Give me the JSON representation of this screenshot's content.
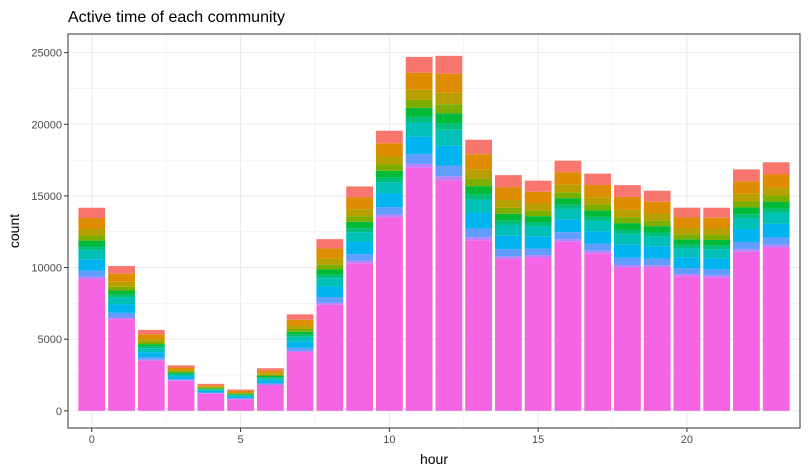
{
  "chart_data": {
    "type": "bar",
    "stacked": true,
    "title": "Active time of each community",
    "xlabel": "hour",
    "ylabel": "count",
    "x": [
      0,
      1,
      2,
      3,
      4,
      5,
      6,
      7,
      8,
      9,
      10,
      11,
      12,
      13,
      14,
      15,
      16,
      17,
      18,
      19,
      20,
      21,
      22,
      23
    ],
    "totals": [
      14300,
      10200,
      5700,
      3200,
      1900,
      1500,
      3000,
      6800,
      12100,
      15800,
      19700,
      24900,
      25000,
      19100,
      16600,
      16200,
      17600,
      16700,
      15900,
      15500,
      14300,
      14300,
      17000,
      17500
    ],
    "base_pink": [
      9200,
      6400,
      3500,
      2100,
      1200,
      800,
      1800,
      4100,
      7400,
      10300,
      13500,
      17000,
      16100,
      11900,
      10600,
      10700,
      11800,
      11000,
      10000,
      10000,
      9400,
      9300,
      11100,
      11400
    ],
    "x_ticks": [
      0,
      5,
      10,
      15,
      20
    ],
    "y_ticks": [
      0,
      5000,
      10000,
      15000,
      20000,
      25000
    ],
    "xlim": [
      -0.8,
      23.8
    ],
    "ylim": [
      -1200,
      26300
    ],
    "band_colors": [
      "#F564E3",
      "#B983FF",
      "#619CFF",
      "#00B4F0",
      "#00C0B8",
      "#00BF7D",
      "#00BA38",
      "#7CAE00",
      "#B79F00",
      "#DE8C00",
      "#F8766D"
    ],
    "band_fractions": [
      0.025,
      0.03,
      0.085,
      0.155,
      0.125,
      0.05,
      0.08,
      0.07,
      0.09,
      0.15,
      0.14
    ],
    "colors": {
      "grid": "#ebebeb",
      "axis": "#333333",
      "background": "#ffffff"
    },
    "grid": true,
    "legend": "none"
  }
}
